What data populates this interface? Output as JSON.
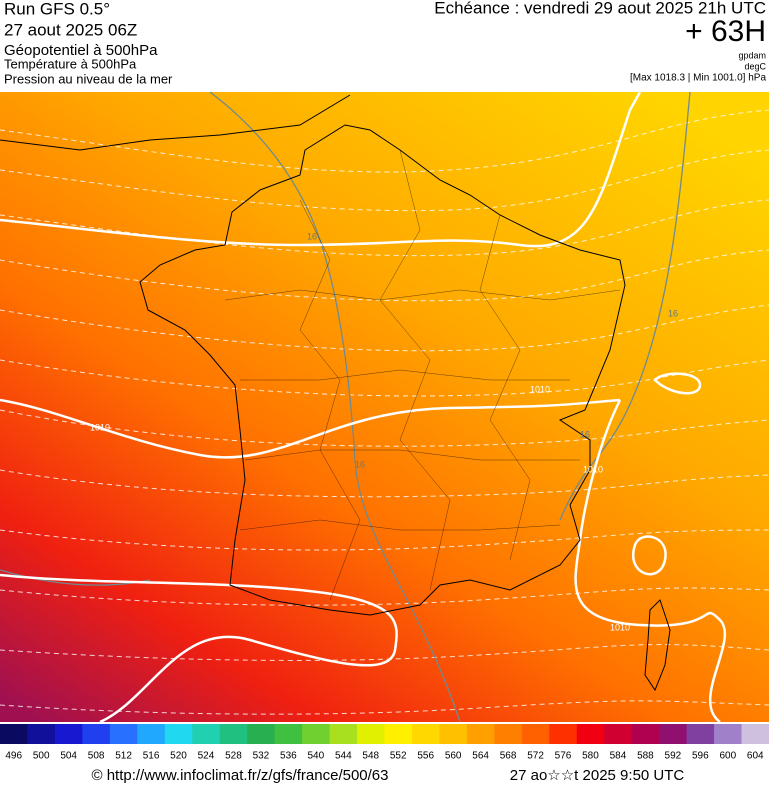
{
  "header": {
    "run": "Run GFS 0.5°",
    "date": "27 aout 2025 06Z",
    "field1": "Géopotentiel à 500hPa",
    "field2": "Température à 500hPa",
    "field3": "Pression au niveau de la mer",
    "valid": "Echéance : vendredi 29 aout 2025 21h UTC",
    "lead": "+ 63H",
    "unit1": "gpdam",
    "unit2": "degC",
    "range": "[Max 1018.3 | Min 1001.0] hPa"
  },
  "map": {
    "contour_labels": [
      "1010",
      "1010",
      "1010",
      "16",
      "16",
      "16",
      "16",
      "1010"
    ]
  },
  "scale": {
    "labels": [
      496,
      500,
      504,
      508,
      512,
      516,
      520,
      524,
      528,
      532,
      536,
      540,
      544,
      548,
      552,
      556,
      560,
      564,
      568,
      572,
      576,
      580,
      584,
      588,
      592,
      596,
      600,
      604
    ],
    "colors": [
      "#0a0a60",
      "#10109a",
      "#1818d0",
      "#2040f0",
      "#2870ff",
      "#20a8ff",
      "#20d8f0",
      "#20d0b0",
      "#20c080",
      "#28b050",
      "#40c040",
      "#70d030",
      "#a8e020",
      "#e0f000",
      "#fff000",
      "#ffd800",
      "#ffc000",
      "#ffa000",
      "#ff8000",
      "#ff6000",
      "#ff3000",
      "#f00010",
      "#d00030",
      "#b00050",
      "#901070",
      "#8040a0",
      "#a080c8",
      "#d0c0e0"
    ]
  },
  "footer": {
    "source": "© http://www.infoclimat.fr/z/gfs/france/500/63",
    "generated": "27 ao☆☆t 2025  9:50 UTC"
  }
}
